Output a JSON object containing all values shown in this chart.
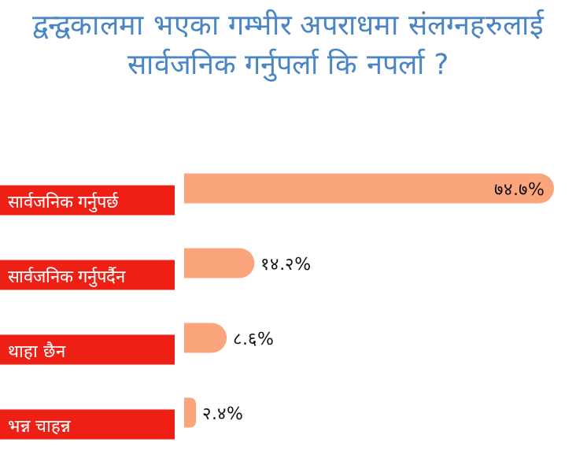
{
  "chart_data": {
    "type": "bar",
    "orientation": "horizontal",
    "title": "द्वन्द्वकालमा भएका गम्भीर अपराधमा संलग्नहरुलाई सार्वजनिक गर्नुपर्ला कि नपर्ला ?",
    "categories": [
      "सार्वजनिक गर्नुपर्छ",
      "सार्वजनिक गर्नुपर्दैन",
      "थाहा छैन",
      "भन्न चाहन्न"
    ],
    "values": [
      74.7,
      14.2,
      8.6,
      2.4
    ],
    "value_labels": [
      "७४.७%",
      "१४.२%",
      "८.६%",
      "२.४%"
    ],
    "color": "#fba57d"
  }
}
